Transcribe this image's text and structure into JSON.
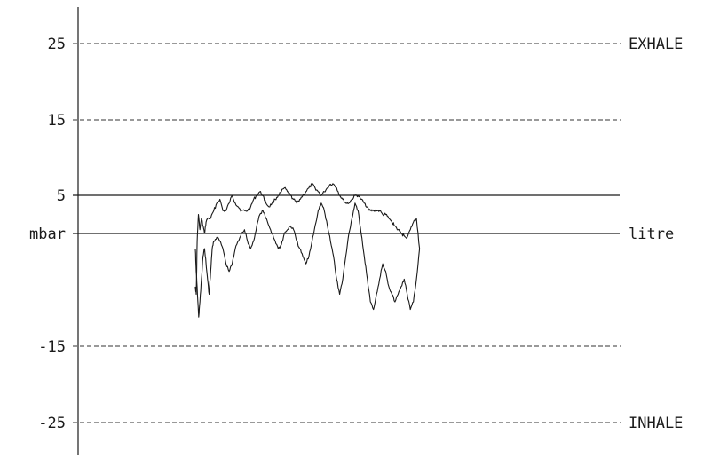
{
  "chart_data": {
    "type": "line",
    "title": "",
    "xlabel": "",
    "ylabel": "mbar",
    "y2label": "litre",
    "ylim": [
      -30,
      30
    ],
    "yticks": [
      25,
      15,
      5,
      -15,
      -25
    ],
    "ytick_labels": [
      "25",
      "15",
      "5",
      "-15",
      "-25"
    ],
    "zero_label": "mbar",
    "zero_label_right": "litre",
    "top_annotation": "EXHALE",
    "bottom_annotation": "INHALE",
    "grid": {
      "dashed_levels": [
        25,
        15,
        -15,
        -25
      ],
      "solid_levels": [
        5,
        0
      ]
    },
    "xlim": [
      0,
      100
    ],
    "series": [
      {
        "points": [
          [
            0,
            -7
          ],
          [
            0.3,
            -8
          ],
          [
            0.6,
            -1
          ],
          [
            1,
            2.5
          ],
          [
            1.5,
            0.5
          ],
          [
            2,
            2
          ],
          [
            2.5,
            1
          ],
          [
            3,
            0
          ],
          [
            3.5,
            1.5
          ],
          [
            4,
            2
          ],
          [
            5,
            2
          ],
          [
            6,
            3
          ],
          [
            7,
            4
          ],
          [
            8,
            4.5
          ],
          [
            9,
            3
          ],
          [
            10,
            3
          ],
          [
            11,
            4
          ],
          [
            12,
            5
          ],
          [
            13,
            4
          ],
          [
            14,
            3.5
          ],
          [
            15,
            3
          ],
          [
            16,
            3
          ],
          [
            17,
            3
          ],
          [
            18,
            3.5
          ],
          [
            19,
            4.5
          ],
          [
            20,
            5
          ],
          [
            21,
            5.5
          ],
          [
            22,
            5
          ],
          [
            23,
            4
          ],
          [
            24,
            3.5
          ],
          [
            25,
            4
          ],
          [
            26,
            4.5
          ],
          [
            27,
            5
          ],
          [
            28,
            5.5
          ],
          [
            29,
            6
          ],
          [
            30,
            5.5
          ],
          [
            31,
            5
          ],
          [
            32,
            4.5
          ],
          [
            33,
            4
          ],
          [
            34,
            4.5
          ],
          [
            35,
            5
          ],
          [
            36,
            5.5
          ],
          [
            37,
            6
          ],
          [
            38,
            6.5
          ],
          [
            39,
            6
          ],
          [
            40,
            5.5
          ],
          [
            41,
            5
          ],
          [
            42,
            5.5
          ],
          [
            43,
            6
          ],
          [
            44,
            6.5
          ],
          [
            45,
            6.5
          ],
          [
            46,
            6
          ],
          [
            47,
            5
          ],
          [
            48,
            4.5
          ],
          [
            49,
            4
          ],
          [
            50,
            4
          ],
          [
            51,
            4.5
          ],
          [
            52,
            5
          ],
          [
            53,
            5
          ],
          [
            54,
            4.5
          ],
          [
            55,
            4
          ],
          [
            56,
            3.5
          ],
          [
            57,
            3
          ],
          [
            58,
            3
          ],
          [
            59,
            3
          ],
          [
            60,
            3
          ],
          [
            61,
            2.5
          ],
          [
            62,
            2.5
          ],
          [
            63,
            2
          ],
          [
            64,
            1.5
          ],
          [
            65,
            1
          ],
          [
            66,
            0.5
          ],
          [
            67,
            0
          ],
          [
            68,
            -0.3
          ],
          [
            69,
            -0.5
          ],
          [
            70,
            0.5
          ],
          [
            71,
            1.5
          ],
          [
            72,
            2
          ],
          [
            73,
            -2
          ]
        ]
      },
      {
        "points": [
          [
            0,
            -2
          ],
          [
            0.3,
            -5
          ],
          [
            0.7,
            -8
          ],
          [
            1.1,
            -11
          ],
          [
            1.5,
            -9
          ],
          [
            2,
            -6
          ],
          [
            2.5,
            -3
          ],
          [
            3,
            -2
          ],
          [
            3.5,
            -4
          ],
          [
            4,
            -6
          ],
          [
            4.5,
            -8
          ],
          [
            5,
            -5
          ],
          [
            5.5,
            -2
          ],
          [
            6,
            -1
          ],
          [
            7,
            -0.5
          ],
          [
            8,
            -1
          ],
          [
            9,
            -2
          ],
          [
            10,
            -4
          ],
          [
            11,
            -5
          ],
          [
            12,
            -4
          ],
          [
            13,
            -2
          ],
          [
            14,
            -1
          ],
          [
            15,
            0
          ],
          [
            16,
            0.5
          ],
          [
            17,
            -1
          ],
          [
            18,
            -2
          ],
          [
            19,
            -1
          ],
          [
            20,
            1
          ],
          [
            21,
            2.5
          ],
          [
            22,
            3
          ],
          [
            23,
            2
          ],
          [
            24,
            1
          ],
          [
            25,
            0
          ],
          [
            26,
            -1
          ],
          [
            27,
            -2
          ],
          [
            28,
            -1.5
          ],
          [
            29,
            0
          ],
          [
            30,
            0.5
          ],
          [
            31,
            1
          ],
          [
            32,
            0.5
          ],
          [
            33,
            -1
          ],
          [
            34,
            -2
          ],
          [
            35,
            -3
          ],
          [
            36,
            -4
          ],
          [
            37,
            -3
          ],
          [
            38,
            -1
          ],
          [
            39,
            1
          ],
          [
            40,
            3
          ],
          [
            41,
            4
          ],
          [
            42,
            3
          ],
          [
            43,
            1
          ],
          [
            44,
            -1
          ],
          [
            45,
            -3
          ],
          [
            46,
            -6
          ],
          [
            47,
            -8
          ],
          [
            48,
            -6
          ],
          [
            49,
            -3
          ],
          [
            50,
            0
          ],
          [
            51,
            2
          ],
          [
            52,
            4
          ],
          [
            53,
            3
          ],
          [
            54,
            0
          ],
          [
            55,
            -3
          ],
          [
            56,
            -6
          ],
          [
            57,
            -9
          ],
          [
            58,
            -10
          ],
          [
            59,
            -8
          ],
          [
            60,
            -6
          ],
          [
            61,
            -4
          ],
          [
            62,
            -5
          ],
          [
            63,
            -7
          ],
          [
            64,
            -8
          ],
          [
            65,
            -9
          ],
          [
            66,
            -8
          ],
          [
            67,
            -7
          ],
          [
            68,
            -6
          ],
          [
            69,
            -8
          ],
          [
            70,
            -10
          ],
          [
            71,
            -9
          ],
          [
            72,
            -6
          ],
          [
            73,
            -2
          ]
        ]
      }
    ]
  }
}
